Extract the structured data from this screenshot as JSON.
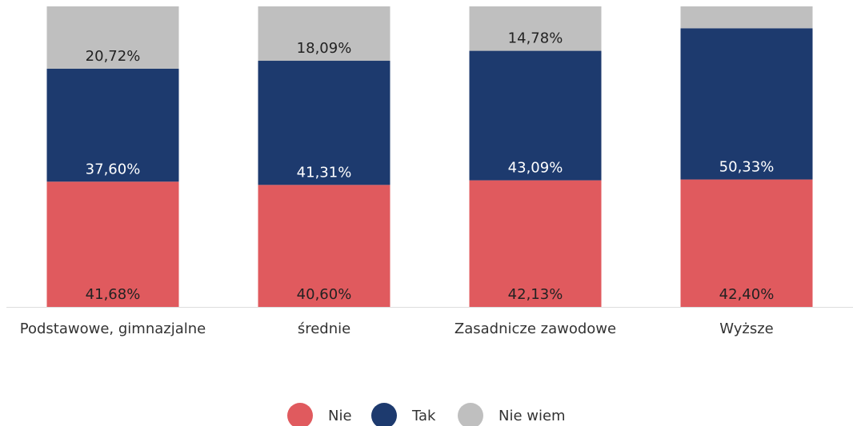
{
  "chart_data": {
    "type": "stacked-bar",
    "categories": [
      "Podstawowe, gimnazjalne",
      "średnie",
      "Zasadnicze zawodowe",
      "Wyższe"
    ],
    "series": [
      {
        "name": "Nie",
        "color": "#e05a5e",
        "values": [
          41.68,
          40.6,
          42.13,
          42.4
        ],
        "value_labels": [
          "41,68%",
          "40,60%",
          "42,13%",
          "42,40%"
        ]
      },
      {
        "name": "Tak",
        "color": "#1d3a6e",
        "values": [
          37.6,
          41.31,
          43.09,
          50.33
        ],
        "value_labels": [
          "37,60%",
          "41,31%",
          "43,09%",
          "50,33%"
        ]
      },
      {
        "name": "Nie wiem",
        "color": "#bfbfbf",
        "values": [
          20.72,
          18.09,
          14.78,
          7.27
        ],
        "value_labels": [
          "20,72%",
          "18,09%",
          "14,78%",
          null
        ]
      }
    ],
    "ylim": [
      0,
      100
    ]
  }
}
